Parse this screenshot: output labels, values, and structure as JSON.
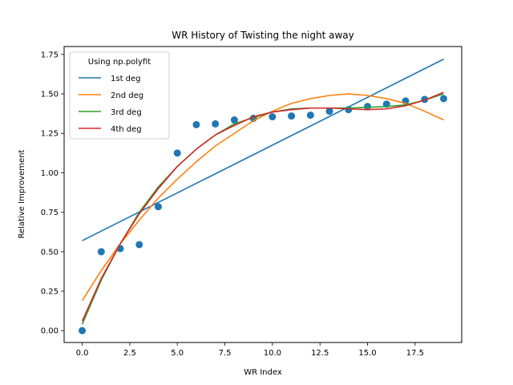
{
  "chart_data": {
    "type": "scatter",
    "title": "WR History of Twisting the night away",
    "xlabel": "WR Index",
    "ylabel": "Relative Improvement",
    "xlim": [
      -0.95,
      19.95
    ],
    "ylim": [
      -0.075,
      1.8
    ],
    "xticks": [
      0,
      2.5,
      5,
      7.5,
      10,
      12.5,
      15,
      17.5
    ],
    "xtick_labels": [
      "0.0",
      "2.5",
      "5.0",
      "7.5",
      "10.0",
      "12.5",
      "15.0",
      "17.5"
    ],
    "yticks": [
      0,
      0.25,
      0.5,
      0.75,
      1.0,
      1.25,
      1.5,
      1.75
    ],
    "ytick_labels": [
      "0.00",
      "0.25",
      "0.50",
      "0.75",
      "1.00",
      "1.25",
      "1.50",
      "1.75"
    ],
    "grid": false,
    "legend": {
      "title": "Using np.polyfit",
      "placement": "top-left"
    },
    "scatter": {
      "color": "#1f77b4",
      "x": [
        0,
        1,
        2,
        3,
        4,
        5,
        6,
        7,
        8,
        9,
        10,
        11,
        12,
        13,
        14,
        15,
        16,
        17,
        18,
        19
      ],
      "y": [
        0.0,
        0.5,
        0.52,
        0.545,
        0.785,
        1.125,
        1.305,
        1.31,
        1.335,
        1.345,
        1.355,
        1.36,
        1.365,
        1.39,
        1.4,
        1.42,
        1.435,
        1.455,
        1.465,
        1.47
      ]
    },
    "series": [
      {
        "name": "1st deg",
        "color": "#1f77b4",
        "x": [
          0,
          19
        ],
        "y": [
          0.57,
          1.72
        ]
      },
      {
        "name": "2nd deg",
        "color": "#ff7f0e",
        "x": [
          0,
          1,
          2,
          3,
          4,
          5,
          6,
          7,
          8,
          9,
          10,
          11,
          12,
          13,
          14,
          15,
          16,
          17,
          18,
          19
        ],
        "y": [
          0.19,
          0.38,
          0.55,
          0.7,
          0.84,
          0.96,
          1.07,
          1.17,
          1.25,
          1.33,
          1.39,
          1.44,
          1.47,
          1.49,
          1.5,
          1.49,
          1.47,
          1.44,
          1.39,
          1.335
        ]
      },
      {
        "name": "3rd deg",
        "color": "#2ca02c",
        "x": [
          0,
          1,
          2,
          3,
          4,
          5,
          6,
          7,
          8,
          9,
          10,
          11,
          12,
          13,
          14,
          15,
          16,
          17,
          18,
          19
        ],
        "y": [
          0.04,
          0.32,
          0.55,
          0.75,
          0.91,
          1.04,
          1.15,
          1.24,
          1.31,
          1.35,
          1.385,
          1.405,
          1.41,
          1.41,
          1.41,
          1.415,
          1.42,
          1.43,
          1.46,
          1.5
        ]
      },
      {
        "name": "4th deg",
        "color": "#d62728",
        "x": [
          0,
          1,
          2,
          3,
          4,
          5,
          6,
          7,
          8,
          9,
          10,
          11,
          12,
          13,
          14,
          15,
          16,
          17,
          18,
          19
        ],
        "y": [
          0.06,
          0.33,
          0.55,
          0.74,
          0.9,
          1.04,
          1.15,
          1.24,
          1.3,
          1.355,
          1.385,
          1.4,
          1.41,
          1.41,
          1.405,
          1.4,
          1.405,
          1.425,
          1.46,
          1.51
        ]
      }
    ]
  }
}
